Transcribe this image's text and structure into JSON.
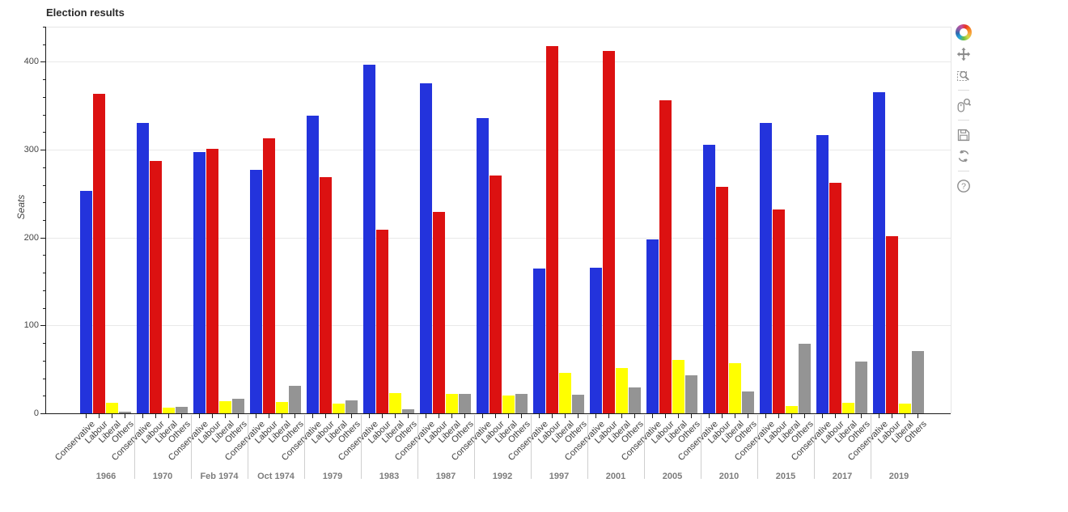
{
  "title": "Election results",
  "y_axis": {
    "label": "Seats",
    "tick_labels": [
      "0",
      "100",
      "200",
      "300",
      "400"
    ]
  },
  "x_axis": {
    "group_labels": [
      "1966",
      "1970",
      "Feb 1974",
      "Oct 1974",
      "1979",
      "1983",
      "1987",
      "1992",
      "1997",
      "2001",
      "2005",
      "2010",
      "2015",
      "2017",
      "2019"
    ],
    "category_labels": [
      "Conservative",
      "Labour",
      "Liberal",
      "Others"
    ]
  },
  "toolbar": {
    "icons": [
      "bokeh-logo",
      "pan-icon",
      "box-zoom-icon",
      "wheel-zoom-icon",
      "save-icon",
      "reset-icon",
      "help-icon"
    ]
  },
  "chart_data": {
    "type": "bar",
    "title": "Election results",
    "xlabel": "",
    "ylabel": "Seats",
    "ylim": [
      0,
      440
    ],
    "yticks": [
      0,
      100,
      200,
      300,
      400
    ],
    "minor_tick_step": 20,
    "grid": true,
    "legend": false,
    "groups": [
      "1966",
      "1970",
      "Feb 1974",
      "Oct 1974",
      "1979",
      "1983",
      "1987",
      "1992",
      "1997",
      "2001",
      "2005",
      "2010",
      "2015",
      "2017",
      "2019"
    ],
    "categories": [
      "Conservative",
      "Labour",
      "Liberal",
      "Others"
    ],
    "series": [
      {
        "name": "Conservative",
        "color": "#2333dc",
        "values": [
          253,
          330,
          297,
          277,
          339,
          397,
          376,
          336,
          165,
          166,
          198,
          306,
          330,
          317,
          365
        ]
      },
      {
        "name": "Labour",
        "color": "#dc1111",
        "values": [
          364,
          287,
          301,
          313,
          269,
          209,
          229,
          271,
          418,
          412,
          356,
          258,
          232,
          262,
          202
        ]
      },
      {
        "name": "Liberal",
        "color": "#ffff00",
        "values": [
          12,
          6,
          14,
          13,
          11,
          23,
          22,
          20,
          46,
          52,
          61,
          57,
          8,
          12,
          11
        ]
      },
      {
        "name": "Others",
        "color": "#949494",
        "values": [
          2,
          7,
          17,
          31,
          15,
          5,
          22,
          22,
          21,
          29,
          43,
          25,
          79,
          59,
          71
        ]
      }
    ]
  }
}
